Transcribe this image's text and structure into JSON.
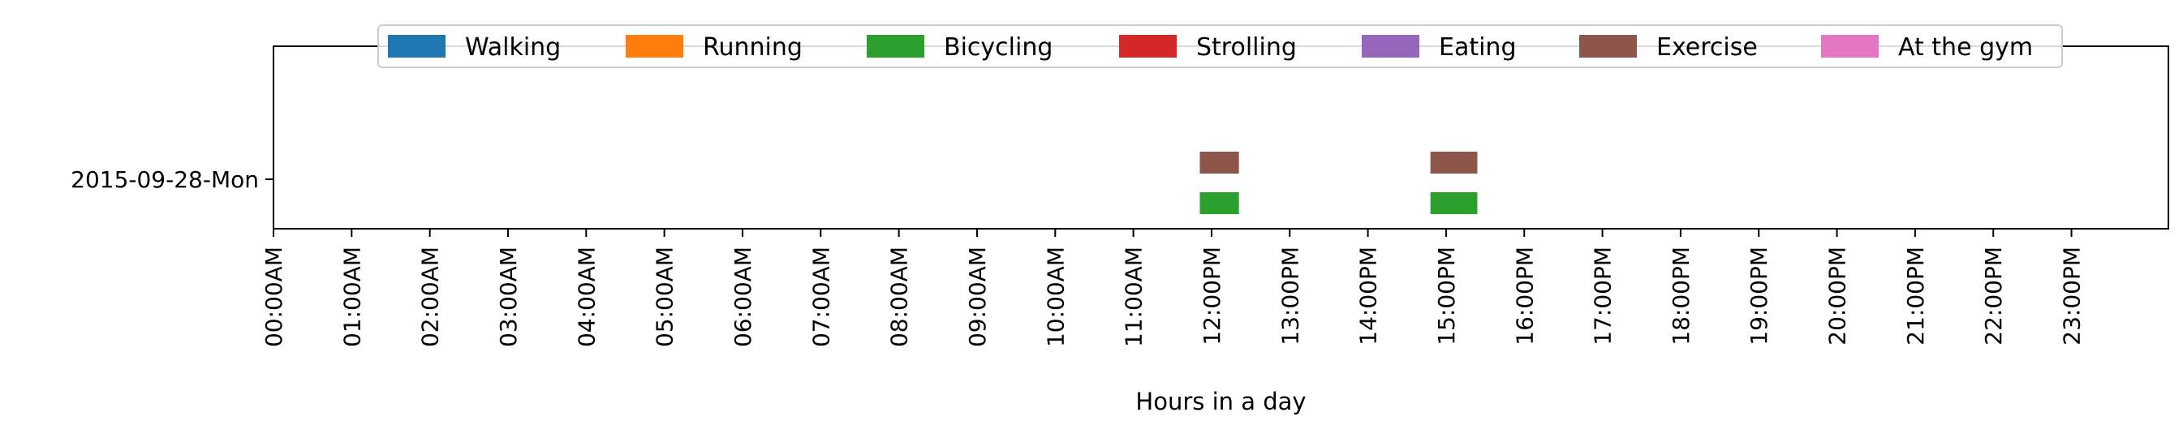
{
  "chart_data": {
    "type": "timeline",
    "xlabel": "Hours in a day",
    "ylabel": "",
    "xlim": [
      0,
      24
    ],
    "x_ticks": [
      "00:00AM",
      "01:00AM",
      "02:00AM",
      "03:00AM",
      "04:00AM",
      "05:00AM",
      "06:00AM",
      "07:00AM",
      "08:00AM",
      "09:00AM",
      "10:00AM",
      "11:00AM",
      "12:00PM",
      "13:00PM",
      "14:00PM",
      "15:00PM",
      "16:00PM",
      "17:00PM",
      "18:00PM",
      "19:00PM",
      "20:00PM",
      "21:00PM",
      "22:00PM",
      "23:00PM"
    ],
    "categories": [
      "2015-09-28-Mon"
    ],
    "legend": {
      "placement": "top-center",
      "entries": [
        {
          "name": "Walking",
          "color": "#1f77b4"
        },
        {
          "name": "Running",
          "color": "#ff7f0e"
        },
        {
          "name": "Bicycling",
          "color": "#2ca02c"
        },
        {
          "name": "Strolling",
          "color": "#d62728"
        },
        {
          "name": "Eating",
          "color": "#9467bd"
        },
        {
          "name": "Exercise",
          "color": "#8c564b"
        },
        {
          "name": "At the gym",
          "color": "#e377c2"
        }
      ]
    },
    "series": [
      {
        "name": "Bicycling",
        "color": "#2ca02c",
        "day": "2015-09-28-Mon",
        "intervals": [
          {
            "start": 11.85,
            "end": 12.35
          },
          {
            "start": 14.8,
            "end": 15.4
          }
        ]
      },
      {
        "name": "Exercise",
        "color": "#8c564b",
        "day": "2015-09-28-Mon",
        "intervals": [
          {
            "start": 11.85,
            "end": 12.35
          },
          {
            "start": 14.8,
            "end": 15.4
          }
        ]
      }
    ]
  }
}
